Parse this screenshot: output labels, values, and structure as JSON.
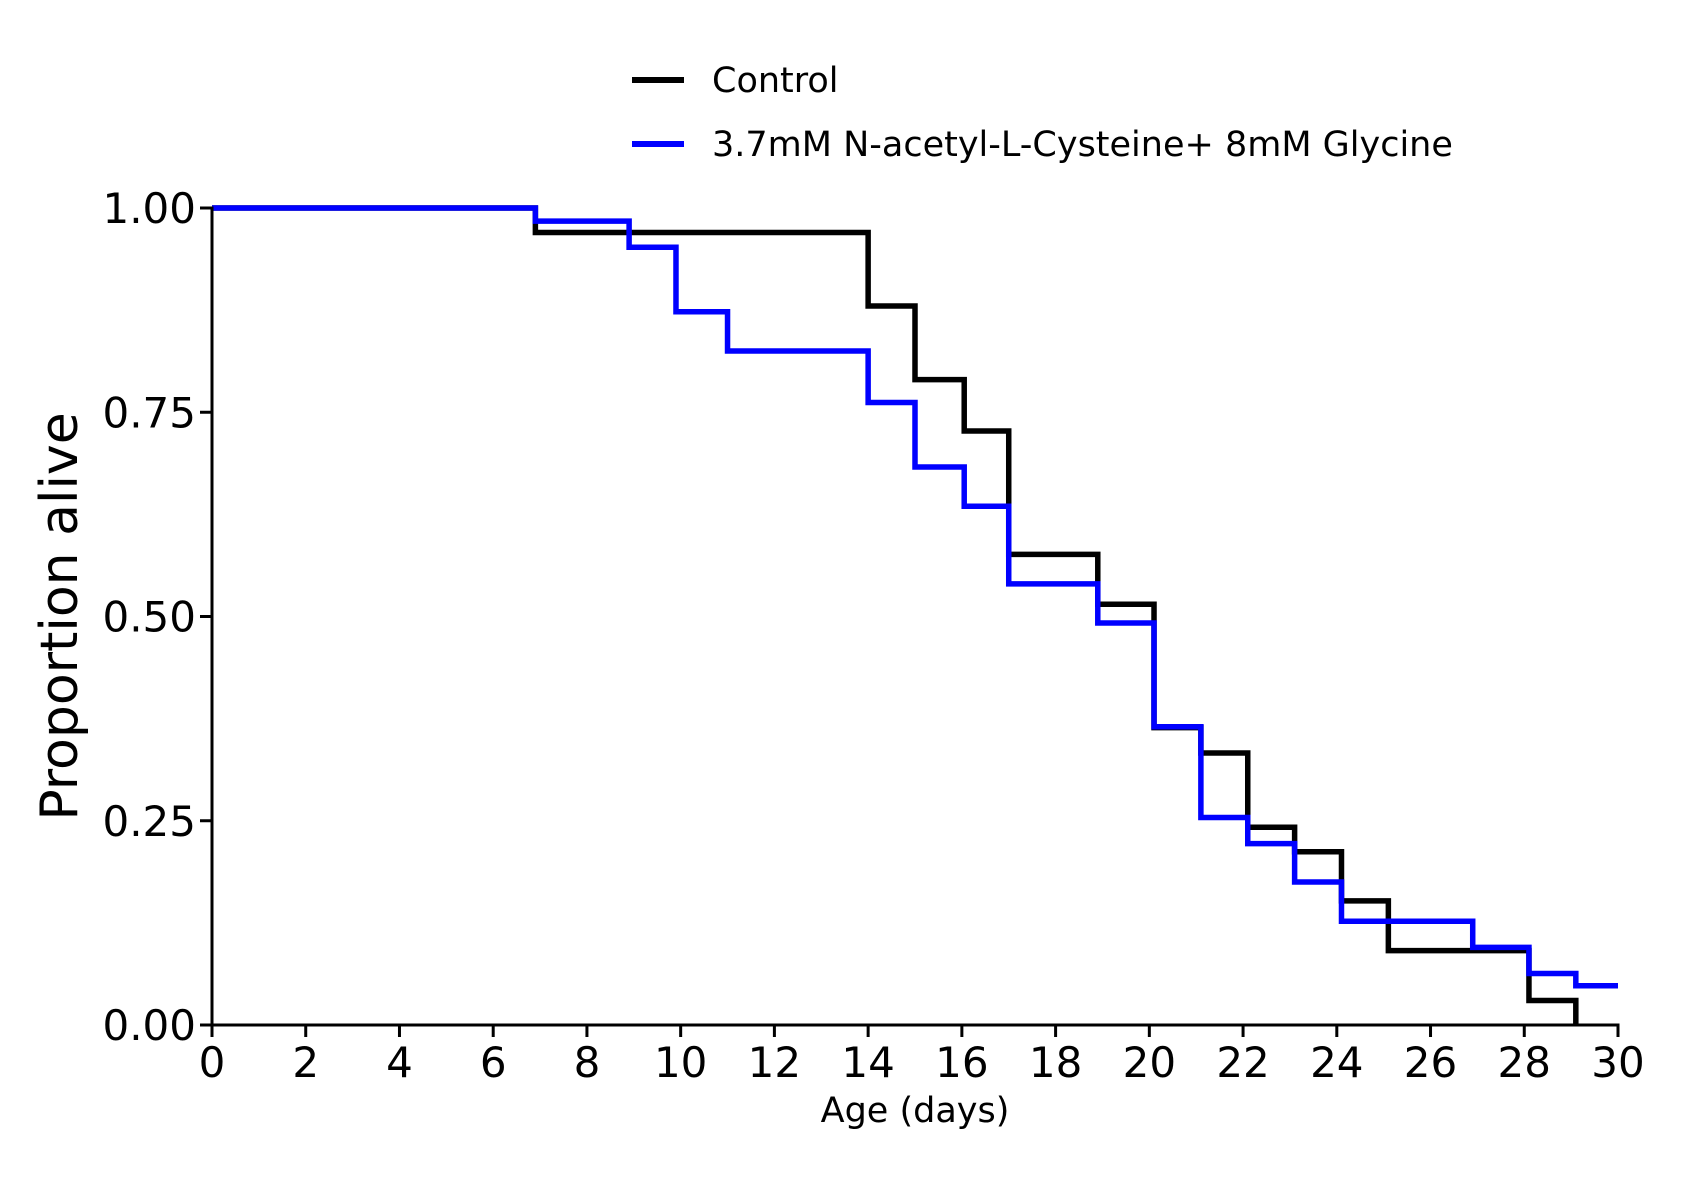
{
  "chart_data": {
    "type": "line",
    "step": true,
    "xlabel": "Age (days)",
    "ylabel": "Proportion alive",
    "xlim": [
      0,
      30
    ],
    "ylim": [
      0,
      1
    ],
    "x_ticks": [
      0,
      2,
      4,
      6,
      8,
      10,
      12,
      14,
      16,
      18,
      20,
      22,
      24,
      26,
      28,
      30
    ],
    "y_ticks": [
      0.0,
      0.25,
      0.5,
      0.75,
      1.0
    ],
    "x_tick_labels": [
      "0",
      "2",
      "4",
      "6",
      "8",
      "10",
      "12",
      "14",
      "16",
      "18",
      "20",
      "22",
      "24",
      "26",
      "28",
      "30"
    ],
    "y_tick_labels": [
      "0.00",
      "0.25",
      "0.50",
      "0.75",
      "1.00"
    ],
    "grid": false,
    "legend_position": "top-center",
    "series": [
      {
        "name": "Control",
        "color": "#000000",
        "x": [
          0,
          6.9,
          14.0,
          15.0,
          16.05,
          17.0,
          18.9,
          20.1,
          21.1,
          22.1,
          23.1,
          24.1,
          25.1,
          28.1,
          29.1
        ],
        "y": [
          1.0,
          0.97,
          0.88,
          0.79,
          0.727,
          0.576,
          0.515,
          0.364,
          0.333,
          0.242,
          0.212,
          0.152,
          0.091,
          0.03,
          0.0
        ]
      },
      {
        "name": "3.7mM N-acetyl-L-Cysteine+ 8mM Glycine",
        "color": "#0000ff",
        "x": [
          0,
          6.9,
          8.9,
          9.9,
          11.0,
          14.0,
          15.0,
          16.05,
          17.0,
          18.9,
          20.1,
          21.1,
          22.1,
          23.1,
          24.1,
          26.9,
          28.1,
          29.1,
          30
        ],
        "y": [
          1.0,
          0.984,
          0.952,
          0.873,
          0.825,
          0.762,
          0.683,
          0.635,
          0.54,
          0.492,
          0.365,
          0.254,
          0.222,
          0.175,
          0.127,
          0.095,
          0.063,
          0.048,
          0.048
        ]
      }
    ]
  }
}
